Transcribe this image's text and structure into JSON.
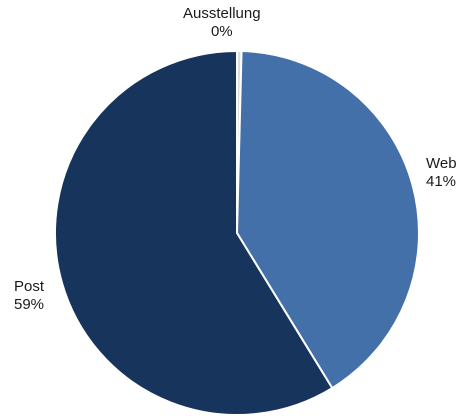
{
  "chart_data": {
    "type": "pie",
    "slices": [
      {
        "label": "Ausstellung",
        "value": 0.4,
        "value_label": "0%",
        "color": "#d9dde3"
      },
      {
        "label": "Web",
        "value": 41,
        "value_label": "41%",
        "color": "#4370a8"
      },
      {
        "label": "Post",
        "value": 59,
        "value_label": "59%",
        "color": "#17345c"
      }
    ],
    "start_angle": "top (12 o'clock)",
    "direction": "clockwise",
    "slice_border_color": "#ffffff"
  }
}
